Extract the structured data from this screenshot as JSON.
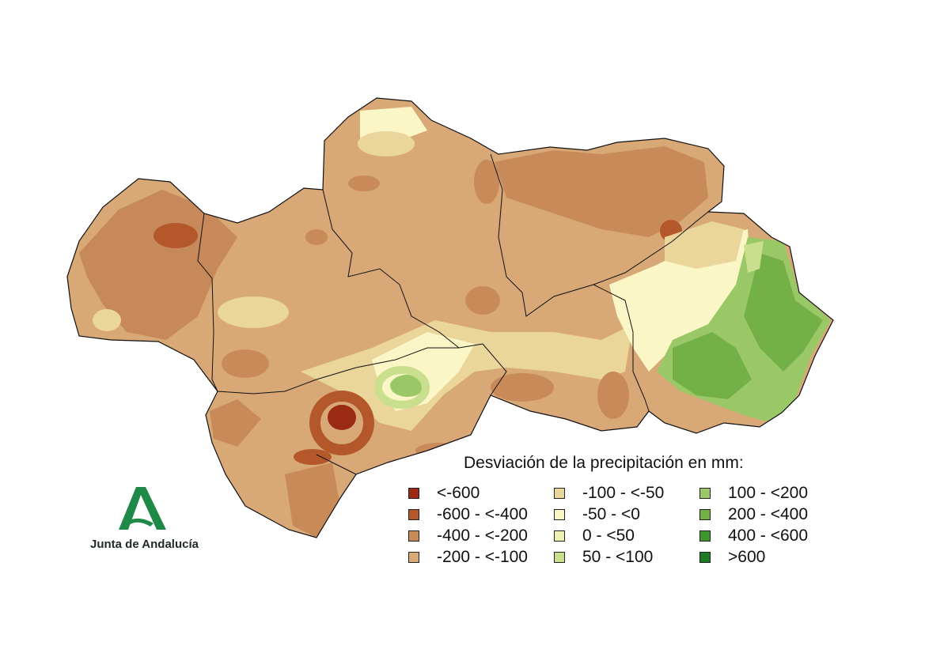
{
  "legend": {
    "title": "Desviación de la precipitación en mm:",
    "classes": [
      {
        "label": "<-600",
        "color": "#9a2a14"
      },
      {
        "label": "-600 - <-400",
        "color": "#b4582c"
      },
      {
        "label": "-400 - <-200",
        "color": "#c98a5a"
      },
      {
        "label": "-200 - <-100",
        "color": "#d9aa78"
      },
      {
        "label": "-100 - <-50",
        "color": "#ead59a"
      },
      {
        "label": "-50 - <0",
        "color": "#fbf6c6"
      },
      {
        "label": "0 - <50",
        "color": "#eef0b2"
      },
      {
        "label": "50 - <100",
        "color": "#c9df8e"
      },
      {
        "label": "100 - <200",
        "color": "#9bc867"
      },
      {
        "label": "200 - <400",
        "color": "#73b046"
      },
      {
        "label": ">600",
        "color": "#1e7a23"
      },
      {
        "label": "400 - <600",
        "color": "#3f952e"
      }
    ]
  },
  "logo": {
    "text": "Junta de Andalucía",
    "color": "#1f8a47"
  }
}
